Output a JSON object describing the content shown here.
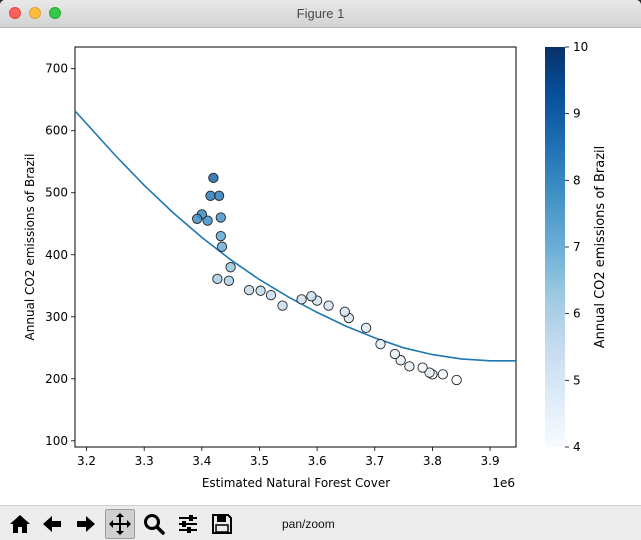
{
  "window": {
    "title": "Figure 1"
  },
  "toolbar": {
    "buttons": [
      {
        "name": "home",
        "icon": "home-icon"
      },
      {
        "name": "back",
        "icon": "arrow-left-icon"
      },
      {
        "name": "forward",
        "icon": "arrow-right-icon"
      },
      {
        "name": "pan",
        "icon": "move-icon",
        "active": true
      },
      {
        "name": "zoom",
        "icon": "magnifier-icon"
      },
      {
        "name": "configure",
        "icon": "sliders-icon"
      },
      {
        "name": "save",
        "icon": "floppy-disk-icon"
      }
    ],
    "mode_text": "pan/zoom"
  },
  "chart_data": {
    "type": "scatter",
    "xlabel": "Estimated Natural Forest Cover",
    "ylabel": "Annual CO2 emissions of Brazil",
    "x_offset_label": "1e6",
    "xlim": [
      3.18,
      3.945
    ],
    "ylim": [
      90,
      735
    ],
    "x_ticks": [
      3.2,
      3.3,
      3.4,
      3.5,
      3.6,
      3.7,
      3.8,
      3.9
    ],
    "y_ticks": [
      100,
      200,
      300,
      400,
      500,
      600,
      700
    ],
    "grid": false,
    "points": [
      {
        "x": 3.842,
        "y": 198,
        "c": 4.0
      },
      {
        "x": 3.818,
        "y": 207,
        "c": 4.1
      },
      {
        "x": 3.8,
        "y": 207,
        "c": 4.2
      },
      {
        "x": 3.795,
        "y": 210,
        "c": 4.3
      },
      {
        "x": 3.783,
        "y": 218,
        "c": 4.3
      },
      {
        "x": 3.76,
        "y": 220,
        "c": 4.4
      },
      {
        "x": 3.745,
        "y": 230,
        "c": 4.5
      },
      {
        "x": 3.735,
        "y": 240,
        "c": 4.5
      },
      {
        "x": 3.71,
        "y": 256,
        "c": 4.6
      },
      {
        "x": 3.685,
        "y": 282,
        "c": 4.8
      },
      {
        "x": 3.655,
        "y": 298,
        "c": 5.0
      },
      {
        "x": 3.648,
        "y": 308,
        "c": 5.0
      },
      {
        "x": 3.62,
        "y": 318,
        "c": 5.1
      },
      {
        "x": 3.6,
        "y": 326,
        "c": 5.2
      },
      {
        "x": 3.59,
        "y": 333,
        "c": 5.3
      },
      {
        "x": 3.573,
        "y": 328,
        "c": 5.3
      },
      {
        "x": 3.54,
        "y": 318,
        "c": 5.4
      },
      {
        "x": 3.52,
        "y": 335,
        "c": 5.5
      },
      {
        "x": 3.502,
        "y": 342,
        "c": 5.6
      },
      {
        "x": 3.482,
        "y": 343,
        "c": 5.6
      },
      {
        "x": 3.45,
        "y": 380,
        "c": 6.3
      },
      {
        "x": 3.447,
        "y": 358,
        "c": 6.0
      },
      {
        "x": 3.427,
        "y": 361,
        "c": 6.1
      },
      {
        "x": 3.435,
        "y": 413,
        "c": 7.0
      },
      {
        "x": 3.433,
        "y": 430,
        "c": 7.2
      },
      {
        "x": 3.433,
        "y": 460,
        "c": 7.7
      },
      {
        "x": 3.43,
        "y": 495,
        "c": 8.2
      },
      {
        "x": 3.415,
        "y": 495,
        "c": 8.3
      },
      {
        "x": 3.42,
        "y": 524,
        "c": 8.8
      },
      {
        "x": 3.41,
        "y": 455,
        "c": 7.8
      },
      {
        "x": 3.4,
        "y": 465,
        "c": 7.9
      },
      {
        "x": 3.392,
        "y": 458,
        "c": 7.8
      }
    ],
    "fit_curve": {
      "color": "#1f77b4",
      "x": [
        3.18,
        3.25,
        3.3,
        3.35,
        3.4,
        3.45,
        3.5,
        3.55,
        3.6,
        3.65,
        3.7,
        3.75,
        3.8,
        3.85,
        3.9,
        3.945
      ],
      "y": [
        632,
        560,
        512,
        468,
        428,
        392,
        360,
        332,
        307,
        285,
        266,
        250,
        239,
        232,
        229,
        229
      ]
    },
    "colorbar": {
      "label": "Annual CO2 emissions of Brazil",
      "range": [
        4,
        10
      ],
      "ticks": [
        4,
        5,
        6,
        7,
        8,
        9,
        10
      ],
      "colormap": "Blues",
      "stops": [
        "#f7fbff",
        "#deebf7",
        "#c6dbef",
        "#9ecae1",
        "#6baed6",
        "#4292c6",
        "#2171b5",
        "#08519c",
        "#08306b"
      ]
    }
  }
}
